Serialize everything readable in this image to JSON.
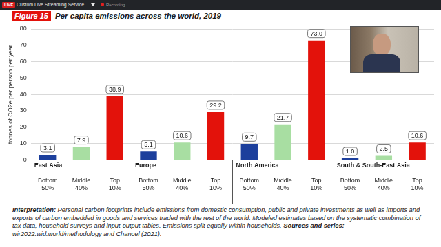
{
  "screen": {
    "badge": "LIVE",
    "service": "Custom Live Streaming Service",
    "status": "Recording"
  },
  "chart_data": {
    "type": "bar",
    "title": "Per capita emissions across the world, 2019",
    "y_label": "tonnes of CO2e per person per year",
    "category_groups": [
      "East Asia",
      "Europe",
      "North America",
      "South & South-East Asia"
    ],
    "categories": [
      "Bottom 50%",
      "Middle 40%",
      "Top 10%",
      "Bottom 50%",
      "Middle 40%",
      "Top 10%",
      "Bottom 50%",
      "Middle 40%",
      "Top 10%",
      "Bottom 50%",
      "Middle 40%",
      "Top 10%"
    ],
    "values": [
      3.1,
      7.9,
      38.9,
      5.1,
      10.6,
      29.2,
      9.7,
      21.7,
      73.0,
      1.0,
      2.5,
      10.6
    ],
    "value_labels": [
      "3.1",
      "7.9",
      "38.9",
      "5.1",
      "10.6",
      "29.2",
      "9.7",
      "21.7",
      "73.0",
      "1.0",
      "2.5",
      "10.6"
    ],
    "colors": [
      "#1c3f9c",
      "#a8dea2",
      "#e3120b",
      "#1c3f9c",
      "#a8dea2",
      "#e3120b",
      "#1c3f9c",
      "#a8dea2",
      "#e3120b",
      "#1c3f9c",
      "#a8dea2",
      "#e3120b"
    ],
    "ylim": [
      0,
      80
    ],
    "yticks": [
      0,
      10,
      20,
      30,
      40,
      50,
      60,
      70,
      80
    ],
    "grid": true,
    "data_labels": true,
    "annotations": {
      "figure": "Figure 15",
      "interpretation_label": "Interpretation:",
      "interpretation": "Personal carbon footprints include emissions from domestic consumption, public and private investments as well as imports and exports of carbon embedded in goods and services traded with the rest of the world. Modeled estimates based on the systematic combination of tax data, household surveys and input-output tables. Emissions split equally within households.",
      "sources_label": "Sources and series:",
      "sources": "wir2022.wid.world/methodology and Chancel (2021)."
    }
  }
}
